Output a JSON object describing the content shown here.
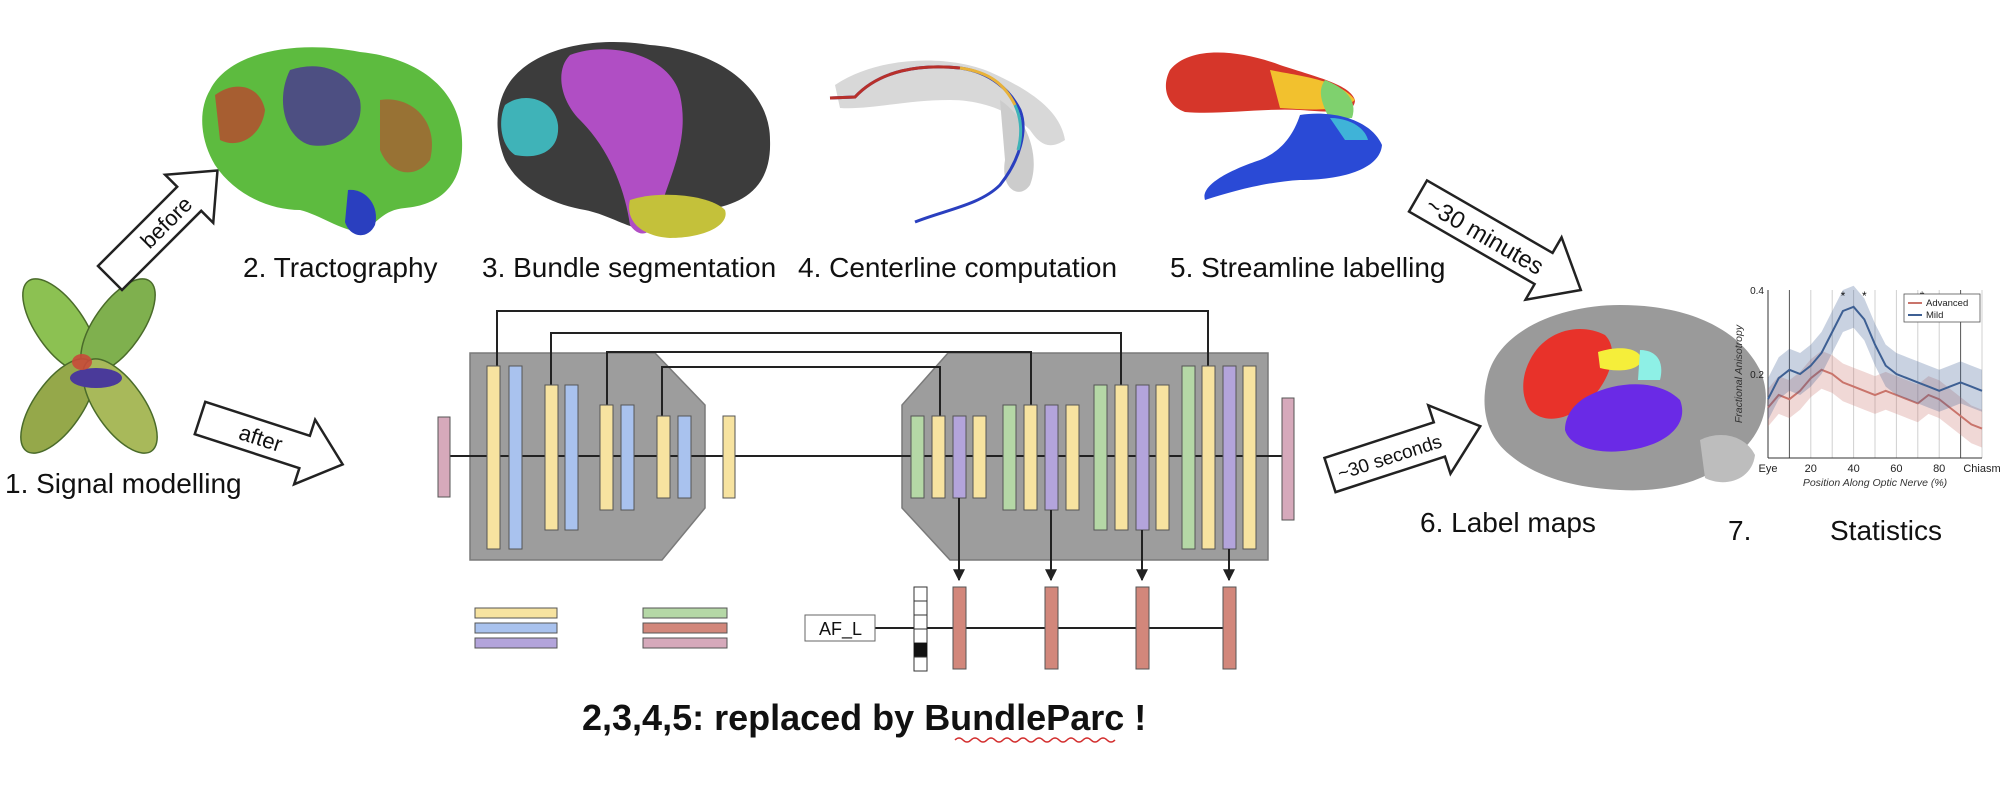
{
  "stages": {
    "signal_modelling": "1. Signal modelling",
    "tractography": "2. Tractography",
    "bundle_segmentation": "3. Bundle segmentation",
    "centerline": "4. Centerline computation",
    "streamline_labelling": "5. Streamline labelling",
    "label_maps": "6. Label maps",
    "statistics_num": "7.",
    "statistics": "Statistics"
  },
  "arrows": {
    "before": "before",
    "after": "after",
    "thirty_minutes": "~30 minutes",
    "thirty_seconds": "~30 seconds"
  },
  "network": {
    "bundle_input": "AF_L"
  },
  "caption": {
    "prefix": "2,3,4,5: replaced by ",
    "name": "BundleParc",
    "suffix": " !"
  },
  "chart_data": {
    "type": "line",
    "ylabel": "Fractional Anisotropy",
    "xlabel": "Position Along Optic Nerve (%)",
    "x_tick_labels": [
      "Eye",
      "20",
      "40",
      "60",
      "80",
      "Chiasm"
    ],
    "y_tick_labels": [
      "0.2",
      "0.4"
    ],
    "ylim": [
      0.0,
      0.4
    ],
    "xlim": [
      0,
      100
    ],
    "legend_position": "top-right",
    "significance_markers": [
      "*",
      "*",
      "*"
    ],
    "x": [
      0,
      5,
      10,
      15,
      20,
      25,
      30,
      35,
      40,
      45,
      50,
      55,
      60,
      65,
      70,
      75,
      80,
      85,
      90,
      95,
      100
    ],
    "series": [
      {
        "name": "Advanced",
        "color": "#c9746b",
        "values": [
          0.12,
          0.15,
          0.14,
          0.16,
          0.19,
          0.21,
          0.2,
          0.18,
          0.17,
          0.16,
          0.15,
          0.16,
          0.15,
          0.14,
          0.13,
          0.15,
          0.14,
          0.12,
          0.1,
          0.08,
          0.07
        ]
      },
      {
        "name": "Mild",
        "color": "#3d5f93",
        "values": [
          0.14,
          0.19,
          0.21,
          0.2,
          0.22,
          0.25,
          0.3,
          0.35,
          0.36,
          0.33,
          0.27,
          0.22,
          0.2,
          0.19,
          0.18,
          0.17,
          0.16,
          0.17,
          0.18,
          0.17,
          0.16
        ]
      }
    ]
  },
  "colors": {
    "encoder_bg": "#9d9d9d",
    "yellow": "#f7e3a0",
    "blue": "#a9c2ee",
    "purple": "#b3a4db",
    "green": "#b5d8a6",
    "red": "#d2877b",
    "pink": "#d6a9bb"
  }
}
